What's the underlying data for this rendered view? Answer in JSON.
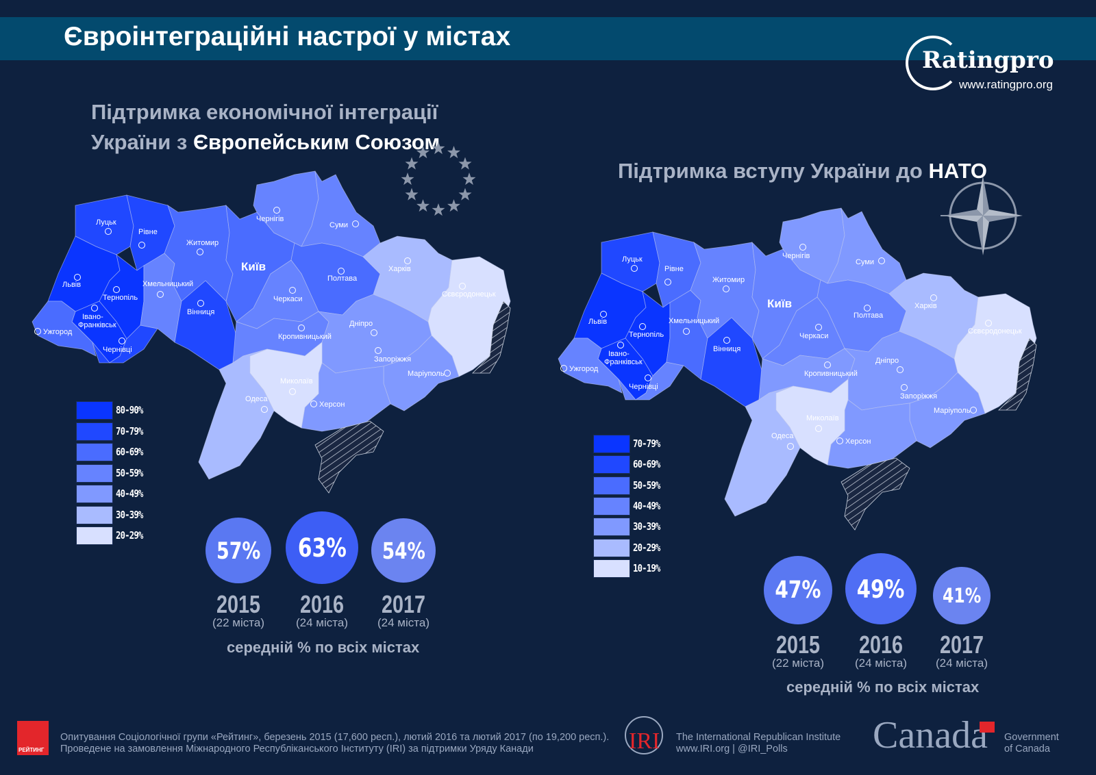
{
  "title": "Євроінтеграційні настрої у містах",
  "logo": {
    "brand": "Ratingpro",
    "url": "www.ratingpro.org"
  },
  "palette": [
    "#0a35ff",
    "#2048ff",
    "#4a6cff",
    "#6683ff",
    "#8099ff",
    "#a9bbff",
    "#d8e0ff"
  ],
  "eu": {
    "title_line1": "Підтримка економічної інтеграції",
    "title_line2_a": "України з ",
    "title_line2_b": "Європейським Союзом",
    "symbol": "eu-stars-icon",
    "legend": [
      "80-90%",
      "70-79%",
      "60-69%",
      "50-59%",
      "40-49%",
      "30-39%",
      "20-29%"
    ],
    "regions": {
      "lutsk": "70-79%",
      "rivne": "70-79%",
      "lviv": "80-90%",
      "ternopil": "80-90%",
      "ivfr": "80-90%",
      "uzh": "60-69%",
      "chern": "70-79%",
      "khm": "50-59%",
      "zhyt": "60-69%",
      "vinn": "70-79%",
      "kyiv": "60-69%",
      "chernihiv": "50-59%",
      "sumy": "50-59%",
      "poltava": "60-69%",
      "cherk": "50-59%",
      "kirov": "50-59%",
      "khar": "30-39%",
      "luh": "20-29%",
      "dnipro": "40-49%",
      "zap": "40-49%",
      "kherson": "40-49%",
      "myk": "20-29%",
      "odesa": "30-39%"
    },
    "stats": [
      {
        "value": "57%",
        "year": "2015",
        "sub": "(22 міста)",
        "color": "#5a78f2"
      },
      {
        "value": "63%",
        "year": "2016",
        "sub": "(24 міста)",
        "color": "#3d5ef5"
      },
      {
        "value": "54%",
        "year": "2017",
        "sub": "(24 міста)",
        "color": "#6b84f0"
      }
    ],
    "caption": "середній % по всіх містах"
  },
  "nato": {
    "title_a": "Підтримка вступу України до ",
    "title_b": "НАТО",
    "symbol": "nato-compass-icon",
    "legend": [
      "70-79%",
      "60-69%",
      "50-59%",
      "40-49%",
      "30-39%",
      "20-29%",
      "10-19%"
    ],
    "regions": {
      "lutsk": "60-69%",
      "rivne": "50-59%",
      "lviv": "70-79%",
      "ternopil": "70-79%",
      "ivfr": "70-79%",
      "uzh": "40-49%",
      "chern": "40-49%",
      "khm": "50-59%",
      "zhyt": "40-49%",
      "vinn": "60-69%",
      "kyiv": "40-49%",
      "chernihiv": "30-39%",
      "sumy": "30-39%",
      "poltava": "40-49%",
      "cherk": "40-49%",
      "kirov": "30-39%",
      "khar": "20-29%",
      "luh": "10-19%",
      "dnipro": "30-39%",
      "zap": "30-39%",
      "kherson": "30-39%",
      "myk": "10-19%",
      "odesa": "20-29%"
    },
    "stats": [
      {
        "value": "47%",
        "year": "2015",
        "sub": "(22 міста)",
        "color": "#5a78f2"
      },
      {
        "value": "49%",
        "year": "2016",
        "sub": "(24 міста)",
        "color": "#4f6ef4"
      },
      {
        "value": "41%",
        "year": "2017",
        "sub": "(24 міста)",
        "color": "#6b84f0"
      }
    ],
    "caption": "середній % по всіх містах"
  },
  "cities": {
    "lutsk": "Луцьк",
    "rivne": "Рівне",
    "lviv": "Львів",
    "ternopil": "Тернопіль",
    "ivfr1": "Івано-",
    "ivfr2": "Франківськ",
    "uzh": "Ужгород",
    "chern": "Чернівці",
    "khm": "Хмельницький",
    "zhyt": "Житомир",
    "vinn": "Вінниця",
    "kyiv": "Київ",
    "chernihiv": "Чернігів",
    "sumy": "Суми",
    "poltava": "Полтава",
    "cherk": "Черкаси",
    "kirov": "Кропивницький",
    "khar": "Харків",
    "luh": "Сєвєродонецьк",
    "dnipro": "Дніпро",
    "zap": "Запоріжжя",
    "mar": "Маріуполь",
    "kherson": "Херсон",
    "myk": "Миколаїв",
    "odesa": "Одеса"
  },
  "footer": {
    "line1": "Опитування Соціологічної групи «Рейтинг», березень 2015 (17,600 респ.), лютий 2016 та лютий 2017 (по 19,200 респ.).",
    "line2": "Проведене на замовлення Міжнародного Республіканського Інституту (IRI) за підтримки Уряду Канади",
    "rating_logo": "РЕЙТИНГ",
    "iri_logo": "IRI",
    "iri_name": "The International Republican Institute",
    "iri_links": "www.IRI.org | @IRI_Polls",
    "canada_wordmark": "Canada",
    "gov1": "Government",
    "gov2": "of Canada"
  }
}
